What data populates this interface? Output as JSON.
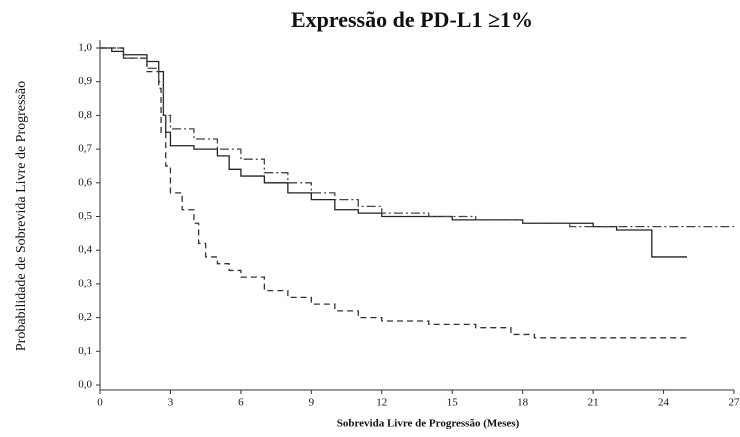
{
  "chart_data": {
    "type": "step-line",
    "title": "Expressão de PD-L1 ≥1%",
    "xlabel": "Sobrevida Livre de Progressão (Meses)",
    "ylabel": "Probabilidade de Sobrevida Livre de Progressão",
    "xlim": [
      0,
      27
    ],
    "xticks": [
      0,
      3,
      6,
      9,
      12,
      15,
      18,
      21,
      24,
      27
    ],
    "ylim": [
      0,
      1
    ],
    "yticks": [
      {
        "value": 0,
        "label": "0,0"
      },
      {
        "value": 0.1,
        "label": "0,1"
      },
      {
        "value": 0.2,
        "label": "0,2"
      },
      {
        "value": 0.3,
        "label": "0,3"
      },
      {
        "value": 0.4,
        "label": "0,4"
      },
      {
        "value": 0.5,
        "label": "0,5"
      },
      {
        "value": 0.6,
        "label": "0,6"
      },
      {
        "value": 0.7,
        "label": "0,7"
      },
      {
        "value": 0.8,
        "label": "0,8"
      },
      {
        "value": 0.9,
        "label": "0,9"
      },
      {
        "value": 1,
        "label": "1,0"
      }
    ],
    "series": [
      {
        "color": "#222222",
        "linestyle": "solid",
        "x": [
          0,
          0.5,
          1,
          2,
          2.5,
          2.7,
          2.8,
          3,
          4,
          5,
          5.5,
          6,
          7,
          8,
          9,
          10,
          11,
          12,
          15,
          18,
          21,
          22,
          23.5,
          25
        ],
        "values": [
          1.0,
          0.99,
          0.98,
          0.96,
          0.93,
          0.8,
          0.75,
          0.71,
          0.7,
          0.68,
          0.64,
          0.62,
          0.6,
          0.57,
          0.55,
          0.52,
          0.51,
          0.5,
          0.49,
          0.48,
          0.47,
          0.46,
          0.38,
          0.38
        ]
      },
      {
        "color": "#444444",
        "linestyle": "dashdot",
        "x": [
          0,
          1,
          2,
          2.5,
          2.7,
          3,
          4,
          5,
          6,
          7,
          8,
          9,
          10,
          11,
          12,
          14,
          16,
          18,
          20,
          27
        ],
        "values": [
          1.0,
          0.97,
          0.94,
          0.9,
          0.8,
          0.76,
          0.73,
          0.7,
          0.67,
          0.63,
          0.6,
          0.57,
          0.55,
          0.53,
          0.51,
          0.5,
          0.49,
          0.48,
          0.47,
          0.47
        ]
      },
      {
        "color": "#333333",
        "linestyle": "dashed",
        "x": [
          0,
          1,
          2,
          2.5,
          2.6,
          2.8,
          3,
          3.5,
          4,
          4.2,
          4.5,
          5,
          5.5,
          6,
          7,
          8,
          9,
          10,
          11,
          12,
          14,
          16,
          17.5,
          18.5,
          25
        ],
        "values": [
          1.0,
          0.97,
          0.93,
          0.88,
          0.75,
          0.65,
          0.57,
          0.52,
          0.48,
          0.42,
          0.38,
          0.36,
          0.34,
          0.32,
          0.28,
          0.26,
          0.24,
          0.22,
          0.2,
          0.19,
          0.18,
          0.17,
          0.15,
          0.14,
          0.14
        ]
      }
    ]
  }
}
